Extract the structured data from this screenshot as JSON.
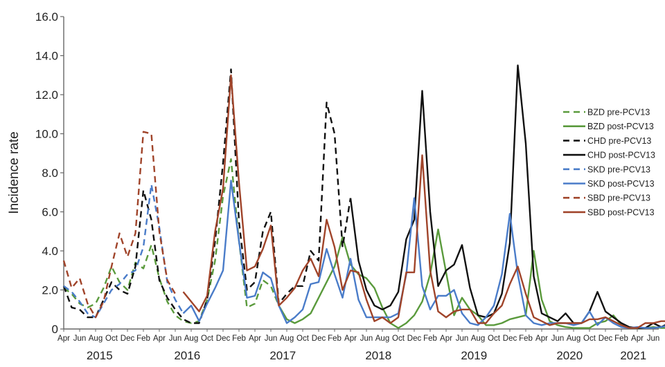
{
  "chart_data": {
    "type": "line",
    "title": "",
    "xlabel": "",
    "ylabel": "Incidence rate",
    "ylim": [
      0,
      16
    ],
    "yticks": [
      "0",
      "2.0",
      "4.0",
      "6.0",
      "8.0",
      "10.0",
      "12.0",
      "14.0",
      "16.0"
    ],
    "grid": false,
    "legend_position": "right",
    "x_start": "Apr 2015",
    "x_end": "Jun 2021",
    "x_tick_labels": [
      "Apr",
      "Jun",
      "Aug",
      "Oct",
      "Dec",
      "Feb",
      "Apr",
      "Jun",
      "Aug",
      "Oct",
      "Dec",
      "Feb",
      "Apr",
      "Jun",
      "Aug",
      "Oct",
      "Dec",
      "Feb",
      "Apr",
      "Jun",
      "Aug",
      "Oct",
      "Dec",
      "Feb",
      "Apr",
      "Jun",
      "Aug",
      "Oct",
      "Dec",
      "Feb",
      "Apr",
      "Jun",
      "Aug",
      "Oct",
      "Dec",
      "Feb",
      "Apr",
      "Jun"
    ],
    "year_labels": [
      {
        "label": "2015",
        "month_index": 4.5
      },
      {
        "label": "2016",
        "month_index": 15.5
      },
      {
        "label": "2017",
        "month_index": 27.5
      },
      {
        "label": "2018",
        "month_index": 39.5
      },
      {
        "label": "2019",
        "month_index": 51.5
      },
      {
        "label": "2020",
        "month_index": 63.5
      },
      {
        "label": "2021",
        "month_index": 71.5
      }
    ],
    "series": [
      {
        "name": "BZD pre-PCV13",
        "color": "#5a9a3c",
        "dash": true,
        "start_index": 0,
        "values": [
          2.1,
          1.8,
          1.3,
          1.1,
          1.3,
          2.1,
          3.2,
          2.4,
          2.0,
          3.4,
          3.1,
          4.3,
          2.6,
          1.4,
          0.7,
          0.4,
          0.3,
          0.4,
          1.5,
          3.5,
          6.8,
          8.7,
          4.5,
          1.1,
          1.3,
          2.5,
          2.2,
          1.2
        ]
      },
      {
        "name": "BZD post-PCV13",
        "color": "#5a9a3c",
        "dash": false,
        "start_index": 27,
        "values": [
          1.2,
          0.5,
          0.3,
          0.5,
          0.8,
          1.6,
          2.4,
          3.2,
          4.7,
          3.3,
          2.8,
          2.6,
          2.1,
          1.1,
          0.3,
          0.05,
          0.3,
          0.7,
          1.4,
          2.8,
          5.1,
          2.9,
          0.7,
          1.6,
          1.0,
          0.7,
          0.2,
          0.2,
          0.3,
          0.5,
          0.6,
          0.7,
          4.0,
          1.5,
          0.4,
          0.2,
          0.1,
          0.05,
          0.05,
          0.05,
          0.3,
          0.4,
          0.7,
          0.2,
          0.05,
          0.05,
          0.05,
          0.1,
          0.05,
          0.05
        ]
      },
      {
        "name": "CHD pre-PCV13",
        "color": "#111111",
        "dash": true,
        "start_index": 0,
        "values": [
          2.2,
          1.1,
          1.0,
          0.6,
          0.6,
          1.5,
          2.4,
          2.0,
          1.8,
          3.2,
          7.1,
          5.6,
          2.5,
          1.6,
          1.0,
          0.5,
          0.3,
          0.3,
          1.5,
          4.5,
          8.5,
          13.3,
          5.5,
          2.0,
          2.4,
          5.0,
          6.0,
          1.3,
          1.8,
          2.2,
          2.2,
          4.0,
          3.5,
          11.6,
          10.0,
          4.2,
          6.7
        ]
      },
      {
        "name": "CHD post-PCV13",
        "color": "#111111",
        "dash": false,
        "start_index": 36,
        "values": [
          6.7,
          3.5,
          2.0,
          1.2,
          1.0,
          1.2,
          1.9,
          4.6,
          5.6,
          12.2,
          6.0,
          2.2,
          3.0,
          3.3,
          4.3,
          2.1,
          0.7,
          0.6,
          0.8,
          1.8,
          4.4,
          13.5,
          9.5,
          2.7,
          0.8,
          0.6,
          0.4,
          0.8,
          0.3,
          0.3,
          0.9,
          1.9,
          0.9,
          0.6,
          0.3,
          0.1,
          0.05,
          0.05,
          0.3,
          0.1,
          0.3,
          0.5
        ]
      },
      {
        "name": "SKD pre-PCV13",
        "color": "#4a7cc9",
        "dash": true,
        "start_index": 0,
        "values": [
          2.2,
          1.9,
          1.4,
          0.8,
          0.6,
          1.3,
          2.0,
          2.3,
          2.8,
          3.0,
          4.2,
          7.4,
          5.2,
          2.4,
          1.5,
          0.8
        ]
      },
      {
        "name": "SKD post-PCV13",
        "color": "#4a7cc9",
        "dash": false,
        "start_index": 15,
        "values": [
          0.8,
          1.2,
          0.4,
          1.3,
          2.1,
          3.0,
          7.6,
          4.5,
          1.6,
          1.7,
          2.9,
          2.6,
          1.2,
          0.3,
          0.6,
          1.0,
          2.3,
          2.4,
          4.1,
          2.8,
          1.6,
          3.6,
          1.5,
          0.6,
          0.6,
          0.6,
          0.6,
          0.8,
          2.8,
          6.7,
          2.2,
          1.0,
          1.7,
          1.7,
          2.0,
          0.8,
          0.3,
          0.2,
          0.6,
          1.2,
          2.8,
          5.9,
          2.8,
          0.7,
          0.3,
          0.2,
          0.3,
          0.3,
          0.3,
          0.2,
          0.3,
          0.9,
          0.2,
          0.6,
          0.3,
          0.1,
          0.05,
          0.1,
          0.05,
          0.05,
          0.1,
          0.2
        ]
      },
      {
        "name": "SBD pre-PCV13",
        "color": "#a0442a",
        "dash": true,
        "start_index": 0,
        "values": [
          3.5,
          2.1,
          2.6,
          1.3,
          0.6,
          1.4,
          3.2,
          4.9,
          3.7,
          4.9,
          10.1,
          10.0,
          5.0,
          2.5,
          1.8
        ]
      },
      {
        "name": "SBD post-PCV13",
        "color": "#a0442a",
        "dash": false,
        "start_index": 15,
        "values": [
          1.9,
          1.4,
          0.9,
          1.7,
          5.0,
          7.2,
          13.0,
          7.5,
          3.0,
          3.2,
          4.1,
          5.3,
          1.2,
          1.6,
          2.1,
          3.0,
          3.6,
          2.7,
          5.6,
          4.2,
          2.0,
          3.0,
          2.9,
          1.5,
          0.4,
          0.6,
          0.3,
          0.6,
          2.9,
          2.9,
          8.9,
          3.0,
          0.9,
          0.6,
          0.9,
          1.0,
          1.0,
          0.3,
          0.3,
          0.8,
          1.2,
          2.3,
          3.2,
          1.8,
          0.6,
          0.4,
          0.2,
          0.3,
          0.3,
          0.3,
          0.3,
          0.5,
          0.5,
          0.6,
          0.4,
          0.2,
          0.05,
          0.05,
          0.3,
          0.3,
          0.4,
          0.4
        ]
      }
    ]
  },
  "axis": {
    "ylabel": "Incidence rate"
  },
  "legend": {
    "items": [
      {
        "label": "BZD pre-PCV13",
        "color": "#5a9a3c",
        "dash": true
      },
      {
        "label": "BZD post-PCV13",
        "color": "#5a9a3c",
        "dash": false
      },
      {
        "label": "CHD pre-PCV13",
        "color": "#111111",
        "dash": true
      },
      {
        "label": "CHD post-PCV13",
        "color": "#111111",
        "dash": false
      },
      {
        "label": "SKD pre-PCV13",
        "color": "#4a7cc9",
        "dash": true
      },
      {
        "label": "SKD post-PCV13",
        "color": "#4a7cc9",
        "dash": false
      },
      {
        "label": "SBD pre-PCV13",
        "color": "#a0442a",
        "dash": true
      },
      {
        "label": "SBD post-PCV13",
        "color": "#a0442a",
        "dash": false
      }
    ]
  }
}
